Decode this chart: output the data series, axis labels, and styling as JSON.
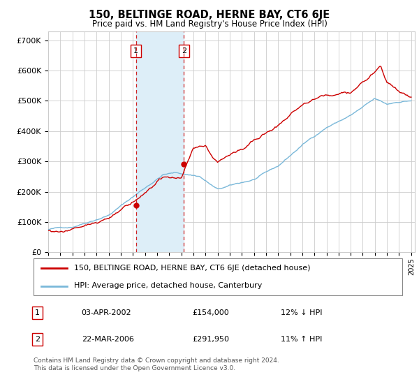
{
  "title": "150, BELTINGE ROAD, HERNE BAY, CT6 6JE",
  "subtitle": "Price paid vs. HM Land Registry's House Price Index (HPI)",
  "ylim": [
    0,
    730000
  ],
  "hpi_color": "#7ab8d9",
  "price_color": "#cc0000",
  "sale1_x": 2002.25,
  "sale1_price": 154000,
  "sale2_x": 2006.22,
  "sale2_price": 291950,
  "shade_color": "#ddeef8",
  "legend_entries": [
    "150, BELTINGE ROAD, HERNE BAY, CT6 6JE (detached house)",
    "HPI: Average price, detached house, Canterbury"
  ],
  "table_rows": [
    [
      "1",
      "03-APR-2002",
      "£154,000",
      "12% ↓ HPI"
    ],
    [
      "2",
      "22-MAR-2006",
      "£291,950",
      "11% ↑ HPI"
    ]
  ],
  "footer": "Contains HM Land Registry data © Crown copyright and database right 2024.\nThis data is licensed under the Open Government Licence v3.0.",
  "background_color": "#ffffff",
  "grid_color": "#cccccc"
}
